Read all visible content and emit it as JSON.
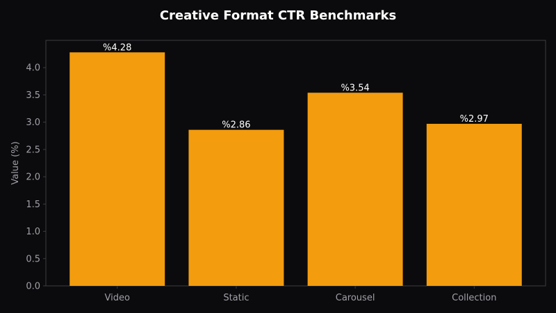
{
  "chart_data": {
    "type": "bar",
    "title": "Creative Format CTR Benchmarks",
    "xlabel": "",
    "ylabel": "Value (%)",
    "categories": [
      "Video",
      "Static",
      "Carousel",
      "Collection"
    ],
    "values": [
      4.28,
      2.86,
      3.54,
      2.97
    ],
    "value_labels": [
      "%4.28",
      "%2.86",
      "%3.54",
      "%2.97"
    ],
    "yticks": [
      0.0,
      0.5,
      1.0,
      1.5,
      2.0,
      2.5,
      3.0,
      3.5,
      4.0
    ],
    "ytick_labels": [
      "0.0",
      "0.5",
      "1.0",
      "1.5",
      "2.0",
      "2.5",
      "3.0",
      "3.5",
      "4.0"
    ],
    "ylim": [
      0,
      4.5
    ],
    "grid": false,
    "legend": "none",
    "colors": {
      "bar": "#f39c0e",
      "background": "#0b0b0d",
      "axis": "#3c3c44",
      "tick_text": "#a0a0a8",
      "label_text": "#ffffff"
    }
  }
}
